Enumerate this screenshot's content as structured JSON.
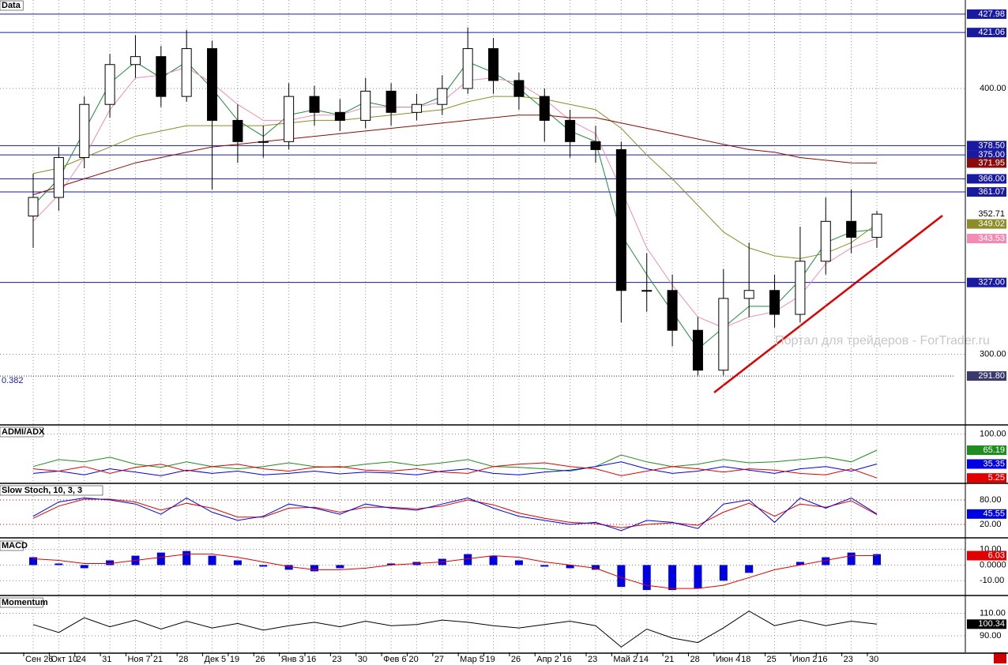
{
  "chart_data": [
    {
      "type": "candlestick",
      "title": "Data",
      "open": [
        352,
        359,
        374,
        394,
        409,
        412,
        397,
        415,
        388,
        380,
        380,
        397,
        391,
        388,
        399,
        391,
        394,
        400,
        415,
        403,
        397,
        388,
        380,
        377,
        324,
        324,
        309,
        294,
        321,
        324,
        315,
        335,
        350,
        344
      ],
      "high": [
        368,
        378,
        397,
        413,
        420,
        416,
        422,
        418,
        394,
        386,
        402,
        401,
        396,
        404,
        402,
        398,
        405,
        423,
        419,
        406,
        400,
        392,
        386,
        380,
        338,
        330,
        314,
        332,
        342,
        330,
        348,
        359,
        362,
        354
      ],
      "low": [
        340,
        354,
        370,
        389,
        404,
        393,
        395,
        362,
        372,
        374,
        377,
        386,
        384,
        385,
        386,
        388,
        390,
        398,
        398,
        392,
        380,
        374,
        372,
        312,
        316,
        303,
        292,
        292,
        314,
        310,
        312,
        330,
        338,
        340
      ],
      "close": [
        359,
        374,
        394,
        409,
        412,
        397,
        415,
        388,
        380,
        380,
        397,
        391,
        388,
        399,
        391,
        394,
        400,
        415,
        403,
        397,
        388,
        380,
        377,
        324,
        324,
        309,
        294,
        321,
        324,
        315,
        335,
        350,
        344,
        352.71
      ],
      "series": [
        {
          "color": "#1e8c3c",
          "tag": false,
          "values": [
            356,
            366,
            384,
            402,
            410,
            404,
            410,
            400,
            388,
            382,
            390,
            392,
            390,
            395,
            393,
            393,
            397,
            410,
            406,
            400,
            392,
            384,
            380,
            345,
            330,
            316,
            302,
            310,
            318,
            318,
            328,
            342,
            346,
            347
          ]
        },
        {
          "color": "#f08cb4",
          "tag": true,
          "values": [
            350,
            360,
            374,
            392,
            404,
            405,
            408,
            402,
            394,
            388,
            388,
            390,
            390,
            393,
            393,
            393,
            395,
            403,
            404,
            402,
            396,
            388,
            383,
            362,
            340,
            326,
            314,
            310,
            314,
            316,
            322,
            334,
            340,
            343.53
          ]
        },
        {
          "color": "#8c8c28",
          "tag": true,
          "values": [
            368,
            370,
            374,
            378,
            382,
            384,
            386,
            386,
            386,
            386,
            387,
            388,
            388,
            389,
            390,
            391,
            392,
            395,
            397,
            397,
            396,
            394,
            392,
            385,
            375,
            366,
            356,
            346,
            340,
            337,
            336,
            338,
            342,
            349.02
          ]
        },
        {
          "color": "#8b0a0a",
          "tag": true,
          "values": [
            360,
            363,
            366,
            369,
            372,
            374,
            376,
            378,
            379,
            380,
            381,
            382,
            383,
            384,
            385,
            386,
            387,
            388,
            389,
            390,
            390,
            389,
            389,
            387,
            385,
            383,
            381,
            379,
            377,
            376,
            374,
            373,
            372,
            371.95
          ]
        }
      ],
      "ylim": [
        274,
        432.7
      ],
      "yticks": [
        {
          "value": 300,
          "label": "300.00"
        },
        {
          "value": 400,
          "label": "400.00"
        }
      ],
      "levels": [
        427.98,
        421.06,
        {
          "value": 378.5,
          "label": "378.50"
        },
        {
          "value": 375,
          "label": "375.00"
        },
        {
          "value": 366,
          "label": "366.00"
        },
        361.07,
        {
          "value": 327,
          "label": "327.00"
        }
      ],
      "fib": {
        "name": "0.382",
        "value": 291.8,
        "label": "291.80"
      },
      "watermark": "Портал для трейдеров - ForTrader.ru"
    },
    {
      "type": "line",
      "title": "ADMI/ADX",
      "ylim": [
        -3,
        113
      ],
      "yticks": [
        {
          "value": 100,
          "label": "100.00"
        }
      ],
      "series": [
        {
          "color": "#1e8c1e",
          "tag": true,
          "values": [
            30,
            45,
            40,
            50,
            35,
            28,
            40,
            30,
            25,
            30,
            38,
            30,
            28,
            35,
            40,
            32,
            38,
            45,
            30,
            28,
            25,
            20,
            30,
            55,
            40,
            30,
            35,
            45,
            38,
            40,
            45,
            50,
            40,
            65.19
          ]
        },
        {
          "color": "#0000e0",
          "tag": true,
          "values": [
            15,
            20,
            12,
            25,
            18,
            10,
            22,
            15,
            20,
            12,
            15,
            20,
            14,
            18,
            16,
            12,
            20,
            25,
            15,
            12,
            18,
            22,
            30,
            40,
            25,
            15,
            20,
            30,
            22,
            15,
            25,
            30,
            20,
            35.35
          ]
        },
        {
          "color": "#e00000",
          "tag": true,
          "values": [
            25,
            20,
            30,
            15,
            28,
            35,
            20,
            30,
            35,
            25,
            20,
            28,
            30,
            22,
            20,
            25,
            18,
            15,
            30,
            35,
            38,
            30,
            25,
            10,
            20,
            30,
            25,
            18,
            25,
            22,
            15,
            12,
            25,
            5.25
          ]
        }
      ]
    },
    {
      "type": "line",
      "title": "Slow Stoch, 10, 3, 3",
      "ylim": [
        -9,
        113
      ],
      "yticks": [
        {
          "value": 80,
          "label": "80.00"
        },
        {
          "value": 20,
          "label": "20.00"
        }
      ],
      "series": [
        {
          "color": "#e00000",
          "tag": false,
          "values": [
            35,
            65,
            82,
            82,
            75,
            55,
            72,
            60,
            38,
            38,
            60,
            62,
            50,
            62,
            62,
            58,
            65,
            80,
            68,
            48,
            35,
            25,
            22,
            12,
            20,
            24,
            18,
            50,
            72,
            40,
            70,
            62,
            78,
            44
          ]
        },
        {
          "color": "#0000e0",
          "tag": true,
          "values": [
            40,
            75,
            85,
            80,
            70,
            45,
            85,
            50,
            30,
            40,
            70,
            60,
            45,
            70,
            60,
            55,
            70,
            85,
            60,
            40,
            30,
            20,
            25,
            5,
            30,
            25,
            10,
            70,
            80,
            25,
            85,
            60,
            85,
            45.55
          ]
        }
      ]
    },
    {
      "type": "bar",
      "title": "MACD",
      "ylim": [
        -18.5,
        14.9
      ],
      "yticks": [
        {
          "value": 10,
          "label": "10.00"
        },
        {
          "value": 0,
          "label": "0.0000"
        },
        {
          "value": -10,
          "label": "-10.00"
        }
      ],
      "series": [
        {
          "color": "#0000e0",
          "tag": false,
          "values": [
            5,
            1,
            -2,
            3,
            6,
            8,
            9,
            6,
            3,
            -1,
            -3,
            -4,
            -2,
            0,
            1,
            2,
            4,
            7,
            6,
            3,
            -1,
            -2,
            -3,
            -14,
            -16,
            -16,
            -15,
            -10,
            -5,
            0,
            2,
            5,
            8,
            7
          ]
        },
        {
          "color": "#e00000",
          "tag": true,
          "values": [
            4,
            3,
            1,
            1,
            3,
            5,
            7,
            7,
            5,
            2,
            -1,
            -3,
            -3,
            -2,
            0,
            1,
            2,
            4,
            6,
            5,
            2,
            0,
            -2,
            -8,
            -13,
            -15,
            -15,
            -13,
            -8,
            -3,
            0,
            3,
            6,
            6.03
          ]
        }
      ]
    },
    {
      "type": "line",
      "title": "Momentum",
      "ylim": [
        76,
        123
      ],
      "yticks": [
        {
          "value": 110,
          "label": "110.00"
        },
        {
          "value": 90,
          "label": "90.00"
        }
      ],
      "series": [
        {
          "color": "#000000",
          "tag": true,
          "values": [
            100,
            93,
            106,
            98,
            104,
            96,
            103,
            97,
            101,
            95,
            99,
            102,
            98,
            103,
            99,
            100,
            104,
            102,
            99,
            97,
            100,
            103,
            99,
            80,
            96,
            88,
            84,
            97,
            112,
            99,
            104,
            99,
            103,
            100.34
          ]
        }
      ],
      "categories": [
        "Сен 26",
        "Окт 10",
        "24",
        "31",
        "Ноя 7",
        "21",
        "28",
        "Дек 5",
        "19",
        "26",
        "Янв 3",
        "16",
        "23",
        "30",
        "Фев 6",
        "20",
        "27",
        "Мар 5",
        "19",
        "26",
        "Апр 2",
        "16",
        "23",
        "Май 2",
        "14",
        "21",
        "28",
        "Июн 4",
        "18",
        "25",
        "Июл 2",
        "16",
        "23",
        "30"
      ]
    }
  ]
}
